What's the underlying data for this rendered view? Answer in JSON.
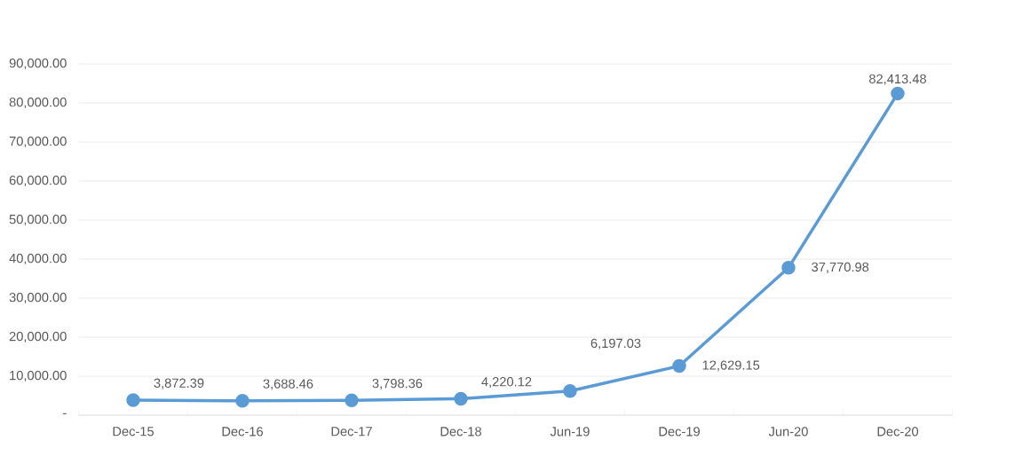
{
  "chart_data": {
    "type": "line",
    "categories": [
      "Dec-15",
      "Dec-16",
      "Dec-17",
      "Dec-18",
      "Jun-19",
      "Dec-19",
      "Jun-20",
      "Dec-20"
    ],
    "series": [
      {
        "color": "#5b9bd5",
        "values": [
          3872.39,
          3688.46,
          3798.36,
          4220.12,
          6197.03,
          12629.15,
          37770.98,
          82413.48
        ],
        "value_labels": [
          "3,872.39",
          "3,688.46",
          "3,798.36",
          "4,220.12",
          "6,197.03",
          "12,629.15",
          "37,770.98",
          "82,413.48"
        ]
      }
    ],
    "ylim": [
      0,
      90000
    ],
    "yticks": [
      {
        "value": 0,
        "label": "-"
      },
      {
        "value": 10000,
        "label": "10,000.00"
      },
      {
        "value": 20000,
        "label": "20,000.00"
      },
      {
        "value": 30000,
        "label": "30,000.00"
      },
      {
        "value": 40000,
        "label": "40,000.00"
      },
      {
        "value": 50000,
        "label": "50,000.00"
      },
      {
        "value": 60000,
        "label": "60,000.00"
      },
      {
        "value": 70000,
        "label": "70,000.00"
      },
      {
        "value": 80000,
        "label": "80,000.00"
      },
      {
        "value": 90000,
        "label": "90,000.00"
      }
    ],
    "grid": "y",
    "marker": "circle",
    "line_style": "solid"
  }
}
